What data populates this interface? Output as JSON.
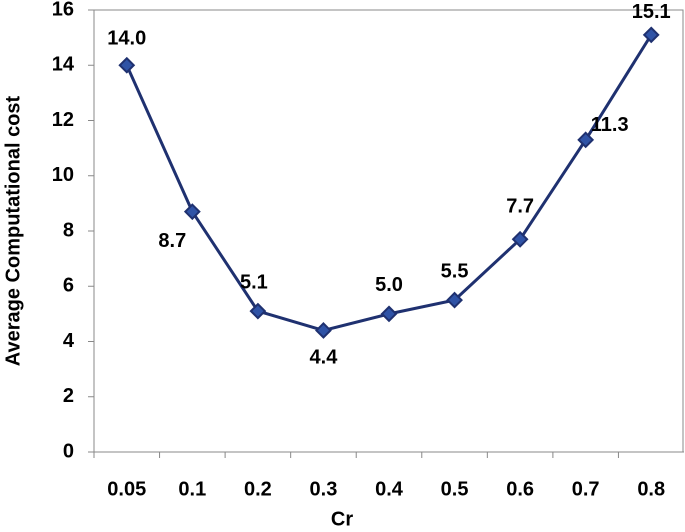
{
  "chart_data": {
    "type": "line",
    "x_label": "Cr",
    "y_label": "Average Computational cost",
    "categories": [
      "0.05",
      "0.1",
      "0.2",
      "0.3",
      "0.4",
      "0.5",
      "0.6",
      "0.7",
      "0.8"
    ],
    "values": [
      14.0,
      8.7,
      5.1,
      4.4,
      5.0,
      5.5,
      7.7,
      11.3,
      15.1
    ],
    "value_labels": [
      "14.0",
      "8.7",
      "5.1",
      "4.4",
      "5.0",
      "5.5",
      "7.7",
      "11.3",
      "15.1"
    ],
    "color": "#1f3170",
    "marker_color": "#2f53a6",
    "ylim": [
      0,
      16
    ],
    "yticks": [
      0,
      2,
      4,
      6,
      8,
      10,
      12,
      14,
      16
    ],
    "grid": false
  }
}
